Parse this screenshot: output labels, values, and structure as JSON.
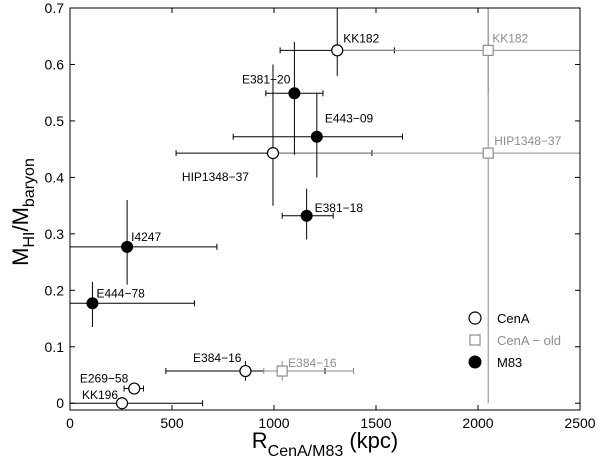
{
  "chart_data": {
    "type": "scatter",
    "xlabel": {
      "main": "R",
      "sub": "CenA/M83",
      "unit": " (kpc)"
    },
    "ylabel": {
      "main": "M",
      "sub1": "HI",
      "mid": "/M",
      "sub2": "baryon"
    },
    "xlim": [
      0,
      2500
    ],
    "ylim": [
      -0.012,
      0.7
    ],
    "xticks": [
      0,
      500,
      1000,
      1500,
      2000,
      2500
    ],
    "yticks": [
      0,
      0.1,
      0.2,
      0.3,
      0.4,
      0.5,
      0.6,
      0.7
    ],
    "xtick_labels": [
      "0",
      "500",
      "1000",
      "1500",
      "2000",
      "2500"
    ],
    "ytick_labels": [
      "0",
      "0.1",
      "0.2",
      "0.3",
      "0.4",
      "0.5",
      "0.6",
      "0.7"
    ],
    "grid": false,
    "legend_position": "bottom-right",
    "series": [
      {
        "name": "CenA",
        "marker": "circle-open",
        "color": "#000000",
        "points": [
          {
            "label": "KK182",
            "x": 1310,
            "y": 0.625,
            "xerr": [
              1030,
              1590
            ],
            "yerr": [
              0.58,
              0.7
            ]
          },
          {
            "label": "HIP1348−37",
            "x": 995,
            "y": 0.443,
            "xerr": [
              520,
              1480
            ],
            "yerr": [
              0.35,
              0.6
            ]
          },
          {
            "label": "E384−16",
            "x": 860,
            "y": 0.057,
            "xerr": [
              470,
              1250
            ],
            "yerr": [
              0.04,
              0.075
            ]
          },
          {
            "label": "E269−58",
            "x": 315,
            "y": 0.026,
            "xerr": [
              265,
              360
            ],
            "yerr": [
              0.02,
              0.035
            ]
          },
          {
            "label": "KK196",
            "x": 255,
            "y": 0.0,
            "xerr": [
              0,
              650
            ],
            "yerr": [
              0.0,
              0.0
            ]
          }
        ]
      },
      {
        "name": "CenA − old",
        "marker": "square-open",
        "color": "#8c8c8c",
        "points": [
          {
            "label": "KK182",
            "x": 2050,
            "y": 0.625,
            "xerr": [
              1310,
              2500
            ],
            "yerr": [
              0.55,
              0.7
            ]
          },
          {
            "label": "HIP1348−37",
            "x": 2050,
            "y": 0.443,
            "xerr": [
              1000,
              2500
            ],
            "yerr": [
              0.0,
              0.7
            ]
          },
          {
            "label": "E384−16",
            "x": 1040,
            "y": 0.057,
            "xerr": [
              950,
              1390
            ],
            "yerr": [
              0.04,
              0.075
            ]
          }
        ]
      },
      {
        "name": "M83",
        "marker": "circle-filled",
        "color": "#000000",
        "points": [
          {
            "label": "E381−20",
            "x": 1100,
            "y": 0.549,
            "xerr": [
              960,
              1240
            ],
            "yerr": [
              0.44,
              0.64
            ]
          },
          {
            "label": "E443−09",
            "x": 1210,
            "y": 0.472,
            "xerr": [
              800,
              1630
            ],
            "yerr": [
              0.4,
              0.55
            ]
          },
          {
            "label": "E381−18",
            "x": 1160,
            "y": 0.332,
            "xerr": [
              1040,
              1290
            ],
            "yerr": [
              0.29,
              0.38
            ]
          },
          {
            "label": "I4247",
            "x": 280,
            "y": 0.277,
            "xerr": [
              0,
              720
            ],
            "yerr": [
              0.21,
              0.36
            ]
          },
          {
            "label": "E444−78",
            "x": 110,
            "y": 0.177,
            "xerr": [
              0,
              610
            ],
            "yerr": [
              0.135,
              0.215
            ]
          }
        ]
      }
    ]
  }
}
